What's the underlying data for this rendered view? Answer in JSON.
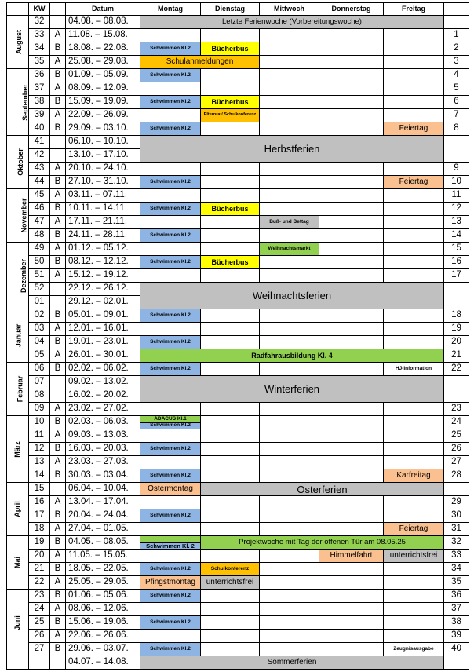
{
  "colors": {
    "grey": "#c0c0c0",
    "blue": "#8db4e2",
    "yellow": "#ffff00",
    "orange": "#ffc000",
    "peach": "#fac090",
    "green": "#92d050"
  },
  "header": [
    "",
    "KW",
    "",
    "Datum",
    "Montag",
    "Dienstag",
    "Mittwoch",
    "Donnerstag",
    "Freitag",
    ""
  ],
  "months": [
    {
      "name": "August",
      "rows": 4
    },
    {
      "name": "September",
      "rows": 5
    },
    {
      "name": "Oktober",
      "rows": 4
    },
    {
      "name": "November",
      "rows": 4
    },
    {
      "name": "Dezember",
      "rows": 5
    },
    {
      "name": "Januar",
      "rows": 4
    },
    {
      "name": "Februar",
      "rows": 4
    },
    {
      "name": "März",
      "rows": 5
    },
    {
      "name": "April",
      "rows": 4
    },
    {
      "name": "Mai",
      "rows": 4
    },
    {
      "name": "Juni",
      "rows": 5
    },
    {
      "name": "",
      "rows": 1
    }
  ],
  "rows": [
    {
      "kw": "32",
      "ab": "",
      "d": "04.08. – 08.08.",
      "n": "",
      "cells": [
        {
          "t": "Letzte Ferienwoche (Vorbereitungswoche)",
          "s": 5,
          "c": "grey",
          "z": "n"
        }
      ]
    },
    {
      "kw": "33",
      "ab": "A",
      "d": "11.08. – 15.08.",
      "n": "1",
      "cells": [
        {},
        {},
        {},
        {},
        {}
      ]
    },
    {
      "kw": "34",
      "ab": "B",
      "d": "18.08. – 22.08.",
      "n": "2",
      "cells": [
        {
          "t": "Schwimmen Kl.2",
          "c": "blue",
          "z": "s"
        },
        {
          "t": "Bücherbus",
          "c": "yellow"
        },
        {},
        {},
        {}
      ]
    },
    {
      "kw": "35",
      "ab": "A",
      "d": "25.08. – 29.08.",
      "n": "3",
      "cells": [
        {
          "t": "Schulanmeldungen",
          "s": 2,
          "c": "orange",
          "z": "m"
        },
        {},
        {},
        {}
      ]
    },
    {
      "kw": "36",
      "ab": "B",
      "d": "01.09. – 05.09.",
      "n": "4",
      "cells": [
        {
          "t": "Schwimmen Kl.2",
          "c": "blue",
          "z": "s"
        },
        {},
        {},
        {},
        {}
      ]
    },
    {
      "kw": "37",
      "ab": "A",
      "d": "08.09. – 12.09.",
      "n": "5",
      "cells": [
        {},
        {},
        {},
        {},
        {}
      ]
    },
    {
      "kw": "38",
      "ab": "B",
      "d": "15.09. – 19.09.",
      "n": "6",
      "cells": [
        {
          "t": "Schwimmen Kl.2",
          "c": "blue",
          "z": "s"
        },
        {
          "t": "Bücherbus",
          "c": "yellow"
        },
        {},
        {},
        {}
      ]
    },
    {
      "kw": "39",
      "ab": "A",
      "d": "22.09. – 26.09.",
      "n": "7",
      "cells": [
        {},
        {
          "t": "Elternrat/ Schulkonferenz",
          "c": "orange",
          "z": "xs"
        },
        {},
        {},
        {}
      ]
    },
    {
      "kw": "40",
      "ab": "B",
      "d": "29.09. – 03.10.",
      "n": "8",
      "cells": [
        {
          "t": "Schwimmen Kl.2",
          "c": "blue",
          "z": "s"
        },
        {},
        {},
        {},
        {
          "t": "Feiertag",
          "c": "peach",
          "z": "m"
        }
      ]
    },
    {
      "kw": "41",
      "ab": "",
      "d": "06.10. – 10.10.",
      "n": "",
      "rs": 2,
      "cells": [
        {
          "t": "Herbstferien",
          "s": 5,
          "c": "grey",
          "z": "l"
        }
      ]
    },
    {
      "kw": "42",
      "ab": "",
      "d": "13.10. – 17.10.",
      "skip": true
    },
    {
      "kw": "43",
      "ab": "A",
      "d": "20.10. – 24.10.",
      "n": "9",
      "cells": [
        {},
        {},
        {},
        {},
        {}
      ]
    },
    {
      "kw": "44",
      "ab": "B",
      "d": "27.10. – 31.10.",
      "n": "10",
      "cells": [
        {
          "t": "Schwimmen Kl.2",
          "c": "blue",
          "z": "s"
        },
        {},
        {},
        {},
        {
          "t": "Feiertag",
          "c": "peach",
          "z": "m"
        }
      ]
    },
    {
      "kw": "45",
      "ab": "A",
      "d": "03.11. – 07.11.",
      "n": "11",
      "cells": [
        {},
        {},
        {},
        {},
        {}
      ]
    },
    {
      "kw": "46",
      "ab": "B",
      "d": "10.11. – 14.11.",
      "n": "12",
      "cells": [
        {
          "t": "Schwimmen Kl.2",
          "c": "blue",
          "z": "s"
        },
        {
          "t": "Bücherbus",
          "c": "yellow"
        },
        {},
        {},
        {}
      ]
    },
    {
      "kw": "47",
      "ab": "A",
      "d": "17.11. – 21.11.",
      "n": "13",
      "cells": [
        {},
        {},
        {
          "t": "Buß- und Bettag",
          "c": "grey",
          "z": "s"
        },
        {},
        {}
      ]
    },
    {
      "kw": "48",
      "ab": "B",
      "d": "24.11. – 28.11.",
      "n": "14",
      "cells": [
        {
          "t": "Schwimmen Kl.2",
          "c": "blue",
          "z": "s"
        },
        {},
        {},
        {},
        {}
      ]
    },
    {
      "kw": "49",
      "ab": "A",
      "d": "01.12. – 05.12.",
      "n": "15",
      "cells": [
        {},
        {},
        {
          "t": "Weihnachtsmarkt",
          "c": "green",
          "z": "s"
        },
        {},
        {}
      ]
    },
    {
      "kw": "50",
      "ab": "B",
      "d": "08.12. – 12.12.",
      "n": "16",
      "cells": [
        {
          "t": "Schwimmen Kl.2",
          "c": "blue",
          "z": "s"
        },
        {
          "t": "Bücherbus",
          "c": "yellow"
        },
        {},
        {},
        {}
      ]
    },
    {
      "kw": "51",
      "ab": "A",
      "d": "15.12. – 19.12.",
      "n": "17",
      "cells": [
        {},
        {},
        {},
        {},
        {}
      ]
    },
    {
      "kw": "52",
      "ab": "",
      "d": "22.12. – 26.12.",
      "n": "",
      "rs": 2,
      "cells": [
        {
          "t": "Weihnachtsferien",
          "s": 5,
          "c": "grey",
          "z": "l"
        }
      ]
    },
    {
      "kw": "01",
      "ab": "",
      "d": "29.12. – 02.01.",
      "skip": true
    },
    {
      "kw": "02",
      "ab": "B",
      "d": "05.01. – 09.01.",
      "n": "18",
      "cells": [
        {
          "t": "Schwimmen Kl.2",
          "c": "blue",
          "z": "s"
        },
        {},
        {},
        {},
        {}
      ]
    },
    {
      "kw": "03",
      "ab": "A",
      "d": "12.01. – 16.01.",
      "n": "19",
      "cells": [
        {},
        {},
        {},
        {},
        {}
      ]
    },
    {
      "kw": "04",
      "ab": "B",
      "d": "19.01. – 23.01.",
      "n": "20",
      "cells": [
        {
          "t": "Schwimmen Kl.2",
          "c": "blue",
          "z": "s"
        },
        {},
        {},
        {},
        {}
      ]
    },
    {
      "kw": "05",
      "ab": "A",
      "d": "26.01. – 30.01.",
      "n": "21",
      "cells": [
        {
          "t": "Radfahrausbildung Kl. 4",
          "s": 5,
          "c": "green"
        }
      ]
    },
    {
      "kw": "06",
      "ab": "B",
      "d": "02.02. – 06.02.",
      "n": "22",
      "cells": [
        {
          "t": "Schwimmen Kl.2",
          "c": "blue",
          "z": "s"
        },
        {},
        {},
        {},
        {
          "t": "HJ-Information",
          "z": "s"
        }
      ]
    },
    {
      "kw": "07",
      "ab": "",
      "d": "09.02. – 13.02.",
      "n": "",
      "rs": 2,
      "cells": [
        {
          "t": "Winterferien",
          "s": 5,
          "c": "grey",
          "z": "l"
        }
      ]
    },
    {
      "kw": "08",
      "ab": "",
      "d": "16.02. – 20.02.",
      "skip": true
    },
    {
      "kw": "09",
      "ab": "A",
      "d": "23.02. – 27.02.",
      "n": "23",
      "cells": [
        {},
        {},
        {},
        {},
        {}
      ]
    },
    {
      "kw": "10",
      "ab": "B",
      "d": "02.03. – 06.03.",
      "n": "24",
      "cells": [
        {
          "split": [
            "ADACUS Kl.1",
            "Schwimmen Kl.2"
          ]
        },
        {},
        {},
        {},
        {}
      ]
    },
    {
      "kw": "11",
      "ab": "A",
      "d": "09.03. – 13.03.",
      "n": "25",
      "cells": [
        {},
        {},
        {},
        {},
        {}
      ]
    },
    {
      "kw": "12",
      "ab": "B",
      "d": "16.03. – 20.03.",
      "n": "26",
      "cells": [
        {
          "t": "Schwimmen Kl.2",
          "c": "blue",
          "z": "s"
        },
        {},
        {},
        {},
        {}
      ]
    },
    {
      "kw": "13",
      "ab": "A",
      "d": "23.03. – 27.03.",
      "n": "27",
      "cells": [
        {},
        {},
        {},
        {},
        {}
      ]
    },
    {
      "kw": "14",
      "ab": "B",
      "d": "30.03. – 03.04.",
      "n": "28",
      "cells": [
        {
          "t": "Schwimmen Kl.2",
          "c": "blue",
          "z": "s"
        },
        {},
        {},
        {},
        {
          "t": "Karfreitag",
          "c": "peach",
          "z": "m"
        }
      ]
    },
    {
      "kw": "15",
      "ab": "",
      "d": "06.04. – 10.04.",
      "n": "",
      "cells": [
        {
          "t": "Ostermontag",
          "c": "peach",
          "z": "m"
        },
        {
          "t": "Osterferien",
          "s": 4,
          "c": "grey",
          "z": "l"
        }
      ]
    },
    {
      "kw": "16",
      "ab": "A",
      "d": "13.04. – 17.04.",
      "n": "29",
      "cells": [
        {},
        {},
        {},
        {},
        {}
      ]
    },
    {
      "kw": "17",
      "ab": "B",
      "d": "20.04. – 24.04.",
      "n": "30",
      "cells": [
        {
          "t": "Schwimmen Kl.2",
          "c": "blue",
          "z": "s"
        },
        {},
        {},
        {},
        {}
      ]
    },
    {
      "kw": "18",
      "ab": "A",
      "d": "27.04. – 01.05.",
      "n": "31",
      "cells": [
        {},
        {},
        {},
        {},
        {
          "t": "Feiertag",
          "c": "peach",
          "z": "m"
        }
      ]
    },
    {
      "kw": "19",
      "ab": "B",
      "d": "04.05. – 08.05.",
      "n": "32",
      "cells": [
        {
          "split2": "Schwimmen Kl. 2"
        },
        {
          "t": "Projektwoche mit Tag der offenen Tür am 08.05.25",
          "s": 4,
          "c": "green",
          "z": "n"
        }
      ]
    },
    {
      "kw": "20",
      "ab": "A",
      "d": "11.05. – 15.05.",
      "n": "33",
      "cells": [
        {},
        {},
        {},
        {
          "t": "Himmelfahrt",
          "c": "peach",
          "z": "m"
        },
        {
          "t": "unterrichtsfrei",
          "c": "grey",
          "z": "m"
        }
      ]
    },
    {
      "kw": "21",
      "ab": "B",
      "d": "18.05. – 22.05.",
      "n": "34",
      "cells": [
        {
          "t": "Schwimmen Kl.2",
          "c": "blue",
          "z": "s"
        },
        {
          "t": "Schulkonferenz",
          "c": "orange",
          "z": "s"
        },
        {},
        {},
        {}
      ]
    },
    {
      "kw": "22",
      "ab": "A",
      "d": "25.05. – 29.05.",
      "n": "35",
      "cells": [
        {
          "t": "Pfingstmontag",
          "c": "peach",
          "z": "m"
        },
        {
          "t": "unterrichtsfrei",
          "c": "grey",
          "z": "m"
        },
        {},
        {},
        {}
      ]
    },
    {
      "kw": "23",
      "ab": "B",
      "d": "01.06. – 05.06.",
      "n": "36",
      "cells": [
        {
          "t": "Schwimmen Kl.2",
          "c": "blue",
          "z": "s"
        },
        {},
        {},
        {},
        {}
      ]
    },
    {
      "kw": "24",
      "ab": "A",
      "d": "08.06. – 12.06.",
      "n": "37",
      "cells": [
        {},
        {},
        {},
        {},
        {}
      ]
    },
    {
      "kw": "25",
      "ab": "B",
      "d": "15.06. – 19.06.",
      "n": "38",
      "cells": [
        {
          "t": "Schwimmen Kl.2",
          "c": "blue",
          "z": "s"
        },
        {},
        {},
        {},
        {}
      ]
    },
    {
      "kw": "26",
      "ab": "A",
      "d": "22.06. – 26.06.",
      "n": "39",
      "cells": [
        {},
        {},
        {},
        {},
        {}
      ]
    },
    {
      "kw": "27",
      "ab": "B",
      "d": "29.06. – 03.07.",
      "n": "40",
      "cells": [
        {
          "t": "Schwimmen Kl.2",
          "c": "blue",
          "z": "s"
        },
        {},
        {},
        {},
        {
          "t": "Zeugnisausgabe",
          "z": "s"
        }
      ]
    },
    {
      "kw": "",
      "ab": "",
      "d": "04.07. – 14.08.",
      "n": "",
      "cells": [
        {
          "t": "Sommerferien",
          "s": 5,
          "c": "grey",
          "z": "m"
        }
      ]
    }
  ]
}
